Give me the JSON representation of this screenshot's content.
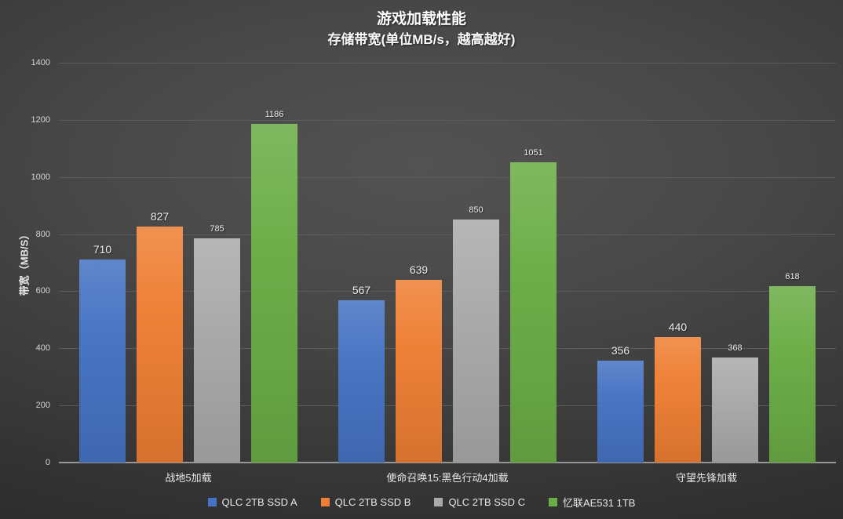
{
  "chart_data": {
    "type": "bar",
    "title": "游戏加载性能",
    "subtitle": "存储带宽(单位MB/s，越高越好)",
    "ylabel": "带宽（MB/S）",
    "categories": [
      "战地5加载",
      "使命召唤15:黑色行动4加载",
      "守望先锋加载"
    ],
    "series": [
      {
        "name": "QLC 2TB SSD A",
        "color": "#4673C3",
        "values": [
          710,
          567,
          356
        ]
      },
      {
        "name": "QLC 2TB SSD B",
        "color": "#EE7F34",
        "values": [
          827,
          639,
          440
        ]
      },
      {
        "name": "QLC 2TB SSD C",
        "color": "#AAAAAA",
        "values": [
          785,
          850,
          368
        ]
      },
      {
        "name": "忆联AE531 1TB",
        "color": "#6BAD46",
        "values": [
          1186,
          1051,
          618
        ]
      }
    ],
    "ylim": [
      0,
      1400
    ],
    "yticks": [
      0,
      200,
      400,
      600,
      800,
      1000,
      1200,
      1400
    ],
    "grid": true,
    "legend_position": "bottom"
  }
}
